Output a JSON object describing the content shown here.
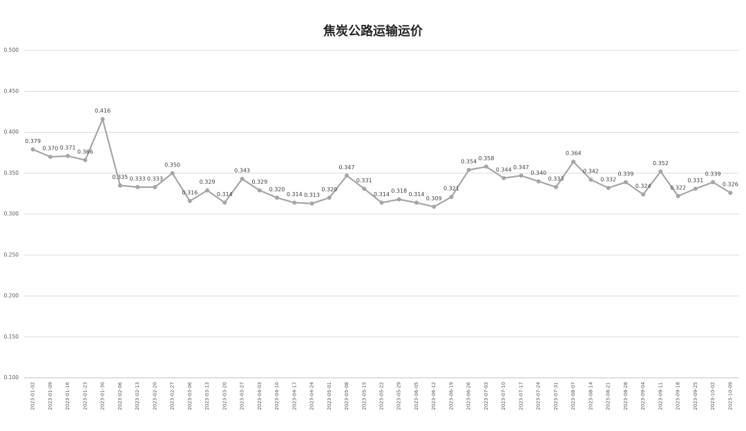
{
  "chart_data": {
    "type": "line",
    "title": "焦炭公路运输运价",
    "categories": [
      "2023-01-02",
      "2023-01-09",
      "2023-01-16",
      "2023-01-23",
      "2023-01-30",
      "2023-02-06",
      "2023-02-13",
      "2023-02-20",
      "2023-02-27",
      "2023-03-06",
      "2023-03-13",
      "2023-03-20",
      "2023-03-27",
      "2023-04-03",
      "2023-04-10",
      "2023-04-17",
      "2023-04-24",
      "2023-05-01",
      "2023-05-08",
      "2023-05-15",
      "2023-05-22",
      "2023-05-29",
      "2023-06-05",
      "2023-06-12",
      "2023-06-19",
      "2023-06-26",
      "2023-07-03",
      "2023-07-10",
      "2023-07-17",
      "2023-07-24",
      "2023-07-31",
      "2023-08-07",
      "2023-08-14",
      "2023-08-21",
      "2023-08-28",
      "2023-09-04",
      "2023-09-11",
      "2023-09-18",
      "2023-09-25",
      "2023-10-02",
      "2023-10-09"
    ],
    "values": [
      0.379,
      0.37,
      0.371,
      0.366,
      0.416,
      0.335,
      0.333,
      0.333,
      0.35,
      0.316,
      0.329,
      0.314,
      0.343,
      0.329,
      0.32,
      0.314,
      0.313,
      0.32,
      0.347,
      0.331,
      0.314,
      0.318,
      0.314,
      0.309,
      0.321,
      0.354,
      0.358,
      0.344,
      0.347,
      0.34,
      0.333,
      0.364,
      0.342,
      0.332,
      0.339,
      0.324,
      0.352,
      0.322,
      0.331,
      0.339,
      0.326
    ],
    "value_labels": [
      "0.379",
      "0.370",
      "0.371",
      "0.366",
      "0.416",
      "0.335",
      "0.333",
      "0.333",
      "0.350",
      "0.316",
      "0.329",
      "0.314",
      "0.343",
      "0.329",
      "0.320",
      "0.314",
      "0.313",
      "0.320",
      "0.347",
      "0.331",
      "0.314",
      "0.318",
      "0.314",
      "0.309",
      "0.321",
      "0.354",
      "0.358",
      "0.344",
      "0.347",
      "0.340",
      "0.333",
      "0.364",
      "0.342",
      "0.332",
      "0.339",
      "0.324",
      "0.352",
      "0.322",
      "0.331",
      "0.339",
      "0.326"
    ],
    "color": "#a5a5a5",
    "ylim": [
      0.1,
      0.5
    ],
    "yticks": [
      {
        "value": 0.1,
        "label": "0.100"
      },
      {
        "value": 0.15,
        "label": "0.150"
      },
      {
        "value": 0.2,
        "label": "0.200"
      },
      {
        "value": 0.25,
        "label": "0.250"
      },
      {
        "value": 0.3,
        "label": "0.300"
      },
      {
        "value": 0.35,
        "label": "0.350"
      },
      {
        "value": 0.4,
        "label": "0.400"
      },
      {
        "value": 0.45,
        "label": "0.450"
      },
      {
        "value": 0.5,
        "label": "0.500"
      }
    ],
    "grid": true
  }
}
